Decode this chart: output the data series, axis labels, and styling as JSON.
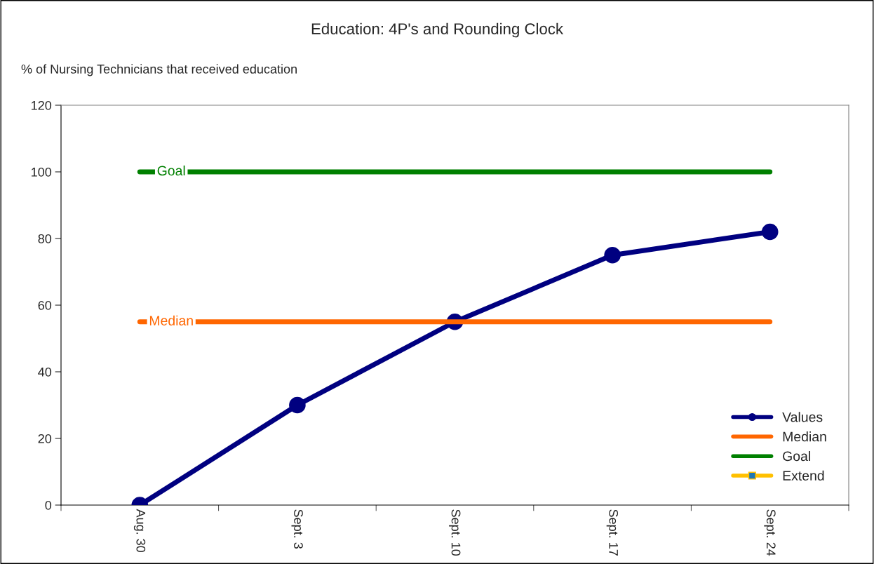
{
  "chart_data": {
    "type": "line",
    "title": "Education: 4P's and Rounding Clock",
    "ylabel": "% of Nursing Technicians that received education",
    "categories": [
      "Aug. 30",
      "Sept. 3",
      "Sept. 10",
      "Sept. 17",
      "Sept. 24"
    ],
    "series": [
      {
        "name": "Values",
        "color": "#000080",
        "values": [
          0,
          30,
          55,
          75,
          82
        ],
        "marker": "circle"
      },
      {
        "name": "Median",
        "color": "#ff6600",
        "values": [
          55,
          55,
          55,
          55,
          55
        ],
        "marker": "none"
      },
      {
        "name": "Goal",
        "color": "#008000",
        "values": [
          100,
          100,
          100,
          100,
          100
        ],
        "marker": "none"
      },
      {
        "name": "Extend",
        "color": "#ffc000",
        "values": [
          null,
          null,
          null,
          null,
          null
        ],
        "marker": "square"
      }
    ],
    "ylim": [
      0,
      120
    ],
    "yticks": [
      0,
      20,
      40,
      60,
      80,
      100,
      120
    ],
    "annotations": [
      {
        "text": "Goal",
        "y": 100
      },
      {
        "text": "Median",
        "y": 55
      }
    ],
    "grid": false,
    "legend": "bottom right",
    "line_style": "solid"
  }
}
